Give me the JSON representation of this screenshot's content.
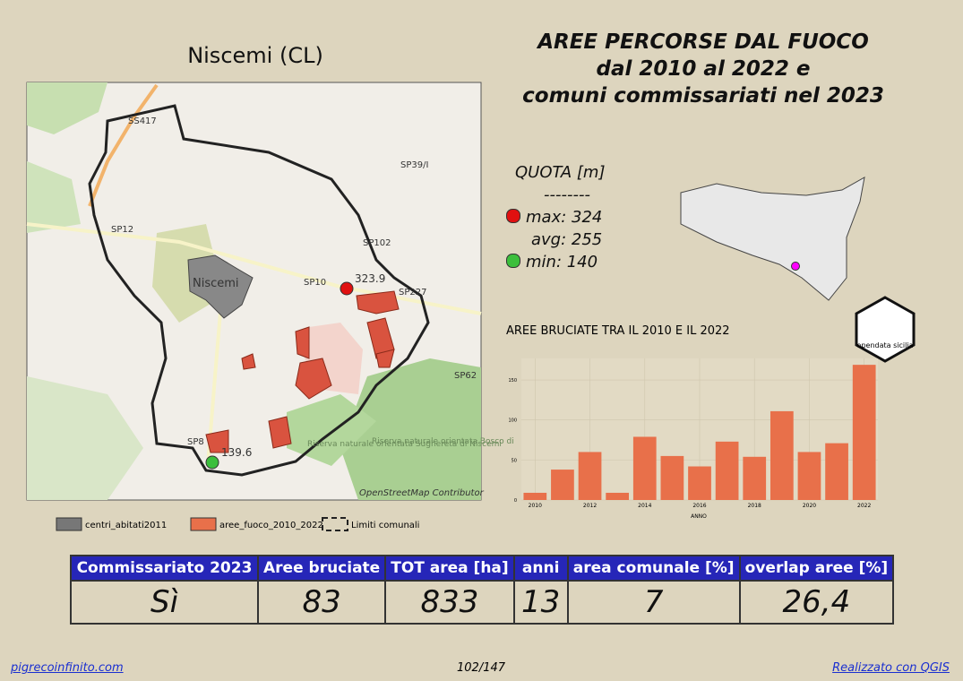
{
  "map_title": "Niscemi (CL)",
  "header": {
    "lines": [
      "AREE PERCORSE DAL FUOCO",
      "dal 2010 al 2022 e",
      "comuni commissariati nel 2023"
    ]
  },
  "map_labels": [
    "Niscemi",
    "SS417",
    "SP39/I",
    "SP12",
    "SP102",
    "SP10",
    "SP227",
    "SP62",
    "SP8",
    "323.9",
    "139.6",
    "Riserva naturale orientata Sughereta di Niscemi",
    "Riserva naturale orientata Bosco di",
    "OpenStreetMap Contributor"
  ],
  "map_legend": [
    "centri_abitati2011",
    "aree_fuoco_2010_2022",
    "Limiti comunali"
  ],
  "quota": {
    "title": "QUOTA [m]",
    "separator": "--------",
    "max": "max: 324",
    "avg": "avg: 255",
    "min": "min: 140"
  },
  "logo": {
    "text": "opendata sicilia"
  },
  "chart_data": {
    "type": "bar",
    "title": "AREE BRUCIATE TRA IL 2010 E IL 2022",
    "x_label": "ANNO",
    "x": [
      2010,
      2011,
      2012,
      2013,
      2014,
      2015,
      2016,
      2017,
      2018,
      2019,
      2020,
      2021,
      2022
    ],
    "values": [
      9,
      38,
      60,
      9,
      79,
      55,
      42,
      73,
      54,
      111,
      60,
      71,
      169
    ],
    "color": "#e8704a",
    "xlim": [
      2009.5,
      2022.5
    ],
    "xticks": [
      2010,
      2012,
      2014,
      2016,
      2018,
      2020,
      2022
    ],
    "ylim": [
      0,
      177
    ],
    "yticks": [
      0,
      50,
      100,
      150
    ],
    "grid": true
  },
  "table": {
    "headers": [
      "Commissariato 2023",
      "Aree bruciate",
      "TOT area [ha]",
      "anni",
      "area comunale [%]",
      "overlap aree [%]"
    ],
    "rows": [
      [
        "Sì",
        "83",
        "833",
        "13",
        "7",
        "26,4"
      ]
    ]
  },
  "footer": {
    "left": "pigrecoinfinito.com",
    "center": "102/147",
    "right": "Realizzato con QGIS"
  }
}
